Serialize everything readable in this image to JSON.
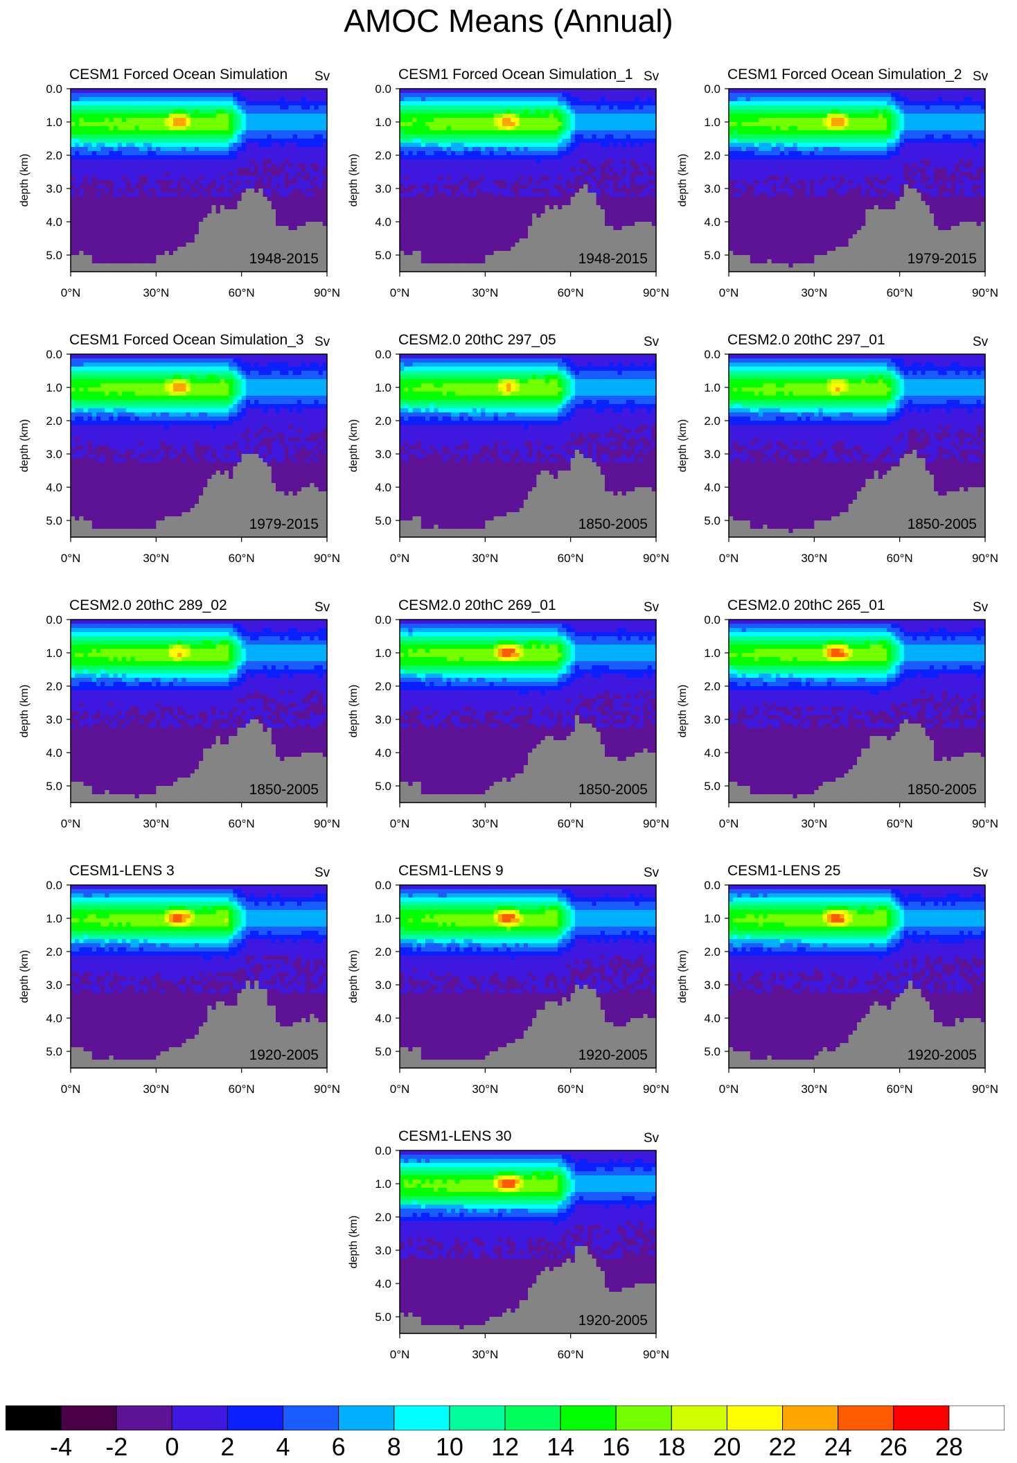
{
  "title": "AMOC Means (Annual)",
  "unit": "Sv",
  "colors": [
    "#000000",
    "#4a0046",
    "#5e1296",
    "#3f18e0",
    "#0a20ff",
    "#1a5cff",
    "#00b0ff",
    "#00ffff",
    "#00ff9c",
    "#00ff5a",
    "#00ff00",
    "#73ff00",
    "#d2ff00",
    "#ffff00",
    "#ffa500",
    "#ff5a00",
    "#ff0000",
    "#ffffff"
  ],
  "land_color": "#848484",
  "chart_data": {
    "type": "heatmap",
    "title": "AMOC Means (Annual)",
    "ylabel": "depth (km)",
    "y_ticks": [
      "0.0",
      "1.0",
      "2.0",
      "3.0",
      "4.0",
      "5.0"
    ],
    "x_ticks": [
      "0°N",
      "30°N",
      "60°N",
      "90°N"
    ],
    "xlim": [
      0,
      90
    ],
    "ylim": [
      0,
      5.5
    ],
    "colorbar": {
      "levels": [
        -4,
        -2,
        0,
        2,
        4,
        6,
        8,
        10,
        12,
        14,
        16,
        18,
        20,
        22,
        24,
        26,
        28
      ],
      "labels": [
        "-4",
        "-2",
        "0",
        "2",
        "4",
        "6",
        "8",
        "10",
        "12",
        "14",
        "16",
        "18",
        "20",
        "22",
        "24",
        "26",
        "28"
      ]
    },
    "panels": [
      {
        "title": "CESM1 Forced Ocean Simulation",
        "period": "1948-2015",
        "max_sv": 24
      },
      {
        "title": "CESM1 Forced Ocean Simulation_1",
        "period": "1948-2015",
        "max_sv": 24
      },
      {
        "title": "CESM1 Forced Ocean Simulation_2",
        "period": "1979-2015",
        "max_sv": 24
      },
      {
        "title": "CESM1 Forced Ocean Simulation_3",
        "period": "1979-2015",
        "max_sv": 24
      },
      {
        "title": "CESM2.0 20thC 297_05",
        "period": "1850-2005",
        "max_sv": 23
      },
      {
        "title": "CESM2.0 20thC 297_01",
        "period": "1850-2005",
        "max_sv": 23
      },
      {
        "title": "CESM2.0 20thC 289_02",
        "period": "1850-2005",
        "max_sv": 23
      },
      {
        "title": "CESM2.0 20thC 269_01",
        "period": "1850-2005",
        "max_sv": 26
      },
      {
        "title": "CESM2.0 20thC 265_01",
        "period": "1850-2005",
        "max_sv": 26
      },
      {
        "title": "CESM1-LENS 3",
        "period": "1920-2005",
        "max_sv": 26
      },
      {
        "title": "CESM1-LENS 9",
        "period": "1920-2005",
        "max_sv": 26
      },
      {
        "title": "CESM1-LENS 25",
        "period": "1920-2005",
        "max_sv": 26
      },
      {
        "title": "CESM1-LENS 30",
        "period": "1920-2005",
        "max_sv": 26
      }
    ]
  }
}
